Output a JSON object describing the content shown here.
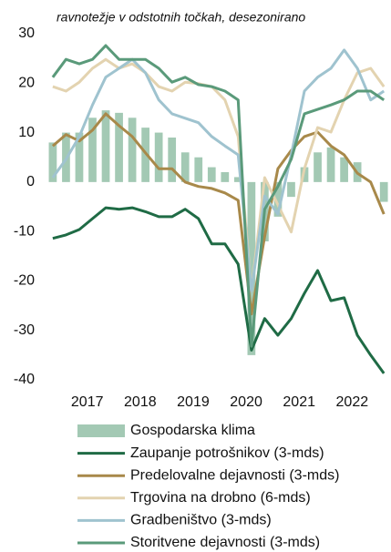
{
  "chart_data": {
    "type": "line",
    "title": "ravnotežje v odstotnih točkah, desezonirano",
    "x": [
      2016.6,
      2016.85,
      2017.1,
      2017.35,
      2017.6,
      2017.85,
      2018.1,
      2018.35,
      2018.6,
      2018.85,
      2019.1,
      2019.35,
      2019.6,
      2019.85,
      2020.1,
      2020.35,
      2020.6,
      2020.85,
      2021.1,
      2021.35,
      2021.6,
      2021.85,
      2022.1,
      2022.35,
      2022.6,
      2022.85
    ],
    "xlim": [
      2016.55,
      2022.95
    ],
    "xticks": [
      {
        "value": 2017.25,
        "label": "2017"
      },
      {
        "value": 2018.25,
        "label": "2018"
      },
      {
        "value": 2019.25,
        "label": "2019"
      },
      {
        "value": 2020.25,
        "label": "2020"
      },
      {
        "value": 2021.25,
        "label": "2021"
      },
      {
        "value": 2022.25,
        "label": "2022"
      }
    ],
    "ylim": [
      -40,
      30
    ],
    "yticks": [
      -40,
      -30,
      -20,
      -10,
      0,
      10,
      20,
      30
    ],
    "series": [
      {
        "name": "Gospodarska klima",
        "type": "bar",
        "color": "#a3c9b4",
        "values": [
          8,
          10,
          10,
          13,
          14.5,
          14,
          13,
          11,
          10,
          9,
          6,
          5,
          3,
          2,
          1,
          -35,
          -12,
          -7,
          -3,
          3,
          6,
          7,
          5,
          4,
          0,
          -4
        ]
      },
      {
        "name": "Zaupanje potrošnikov (3-mds)",
        "color": "#1f6b45",
        "values": [
          -11.4,
          -10.7,
          -9.6,
          -7.4,
          -5.2,
          -5.5,
          -5.2,
          -6,
          -7,
          -7,
          -5.5,
          -7.4,
          -12.5,
          -12.5,
          -16.6,
          -34,
          -27.6,
          -31,
          -27.6,
          -22.5,
          -17.9,
          -24,
          -23.4,
          -31,
          -35,
          -38.7
        ]
      },
      {
        "name": "Predelovalne dejavnosti (3-mds)",
        "color": "#a8894a",
        "values": [
          7.3,
          9.6,
          8.3,
          10.5,
          13.8,
          11.4,
          9.2,
          5.9,
          2.7,
          2.7,
          0,
          -0.9,
          -1.3,
          -2.2,
          -3.7,
          -26.7,
          -11,
          2.7,
          6.4,
          9.2,
          10.1,
          7.3,
          5.5,
          1.8,
          0,
          -6.5
        ]
      },
      {
        "name": "Trgovina na drobno (6-mds)",
        "color": "#e3d3b0",
        "values": [
          19.3,
          18.4,
          20.2,
          23,
          24.8,
          23,
          23.9,
          22.1,
          19.3,
          18.4,
          20.2,
          19.9,
          19.3,
          16.6,
          9.2,
          -22,
          0.9,
          -4.6,
          -10.1,
          2.7,
          11,
          10.1,
          16.6,
          22.1,
          23,
          19.3
        ]
      },
      {
        "name": "Gradbeništvo (3-mds)",
        "color": "#9fc3cf",
        "values": [
          0.9,
          4.6,
          9.2,
          15.6,
          21.2,
          23,
          24.8,
          22.1,
          16.6,
          13.8,
          12.9,
          12,
          9.2,
          7.3,
          5.5,
          -22,
          -2.8,
          -6.5,
          5.5,
          18.4,
          21.2,
          23,
          26.7,
          23,
          16.6,
          18.4
        ]
      },
      {
        "name": "Storitvene dejavnosti (3-mds)",
        "color": "#5a9a7a",
        "values": [
          21.2,
          24.8,
          23.9,
          24.8,
          27.6,
          24.8,
          24.8,
          24.8,
          23,
          20.2,
          21.2,
          19.7,
          19.3,
          18.4,
          16.6,
          -33.2,
          -5.5,
          -0.9,
          4.6,
          13.8,
          14.7,
          15.6,
          16.6,
          18.4,
          18.4,
          16.6
        ]
      }
    ]
  }
}
